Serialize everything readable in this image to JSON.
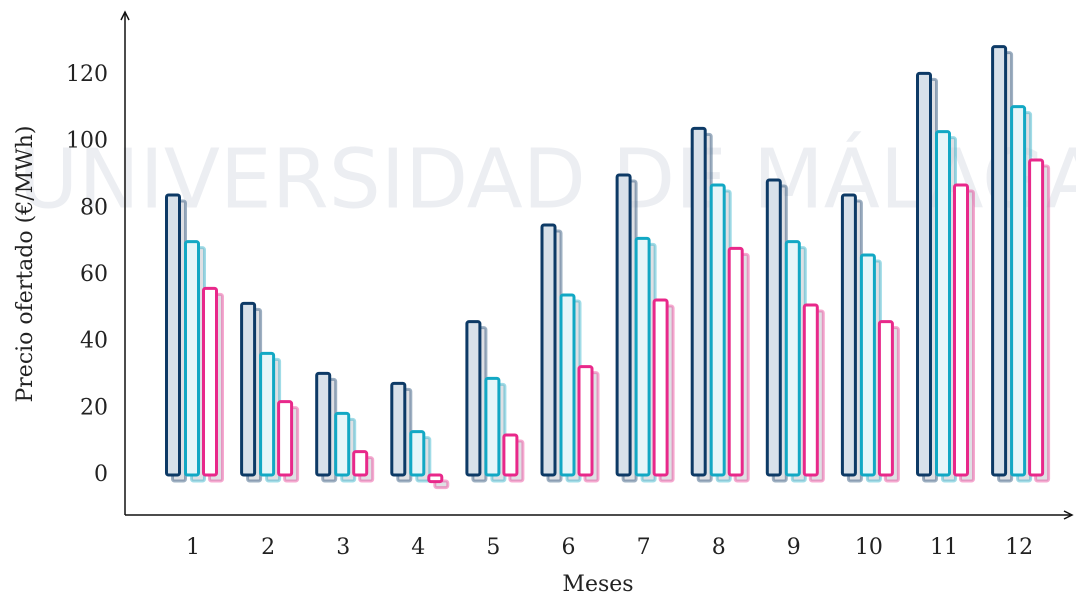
{
  "chart_data": {
    "type": "bar",
    "watermark": "UNIVERSIDAD DE MÁLAGA",
    "x_label": "Meses",
    "y_label": "Precio ofertado (€/MWh)",
    "categories": [
      "1",
      "2",
      "3",
      "4",
      "5",
      "6",
      "7",
      "8",
      "9",
      "10",
      "11",
      "12"
    ],
    "series": [
      {
        "color": "#0d3a66",
        "values": [
          84,
          51.5,
          30.5,
          27.5,
          46,
          75,
          90,
          104,
          88.5,
          84,
          120.5,
          128.5
        ]
      },
      {
        "color": "#12a8c4",
        "values": [
          70,
          36.5,
          18.5,
          13,
          29,
          54,
          71,
          87,
          70,
          66,
          103,
          110.5
        ]
      },
      {
        "color": "#e8288a",
        "values": [
          56,
          22,
          7,
          -2,
          12,
          32.5,
          52.5,
          68,
          51,
          46,
          87,
          94.5
        ]
      }
    ],
    "ylim": [
      -12,
      138
    ],
    "yticks": [
      0,
      20,
      40,
      60,
      80,
      100,
      120
    ],
    "grid": false
  }
}
